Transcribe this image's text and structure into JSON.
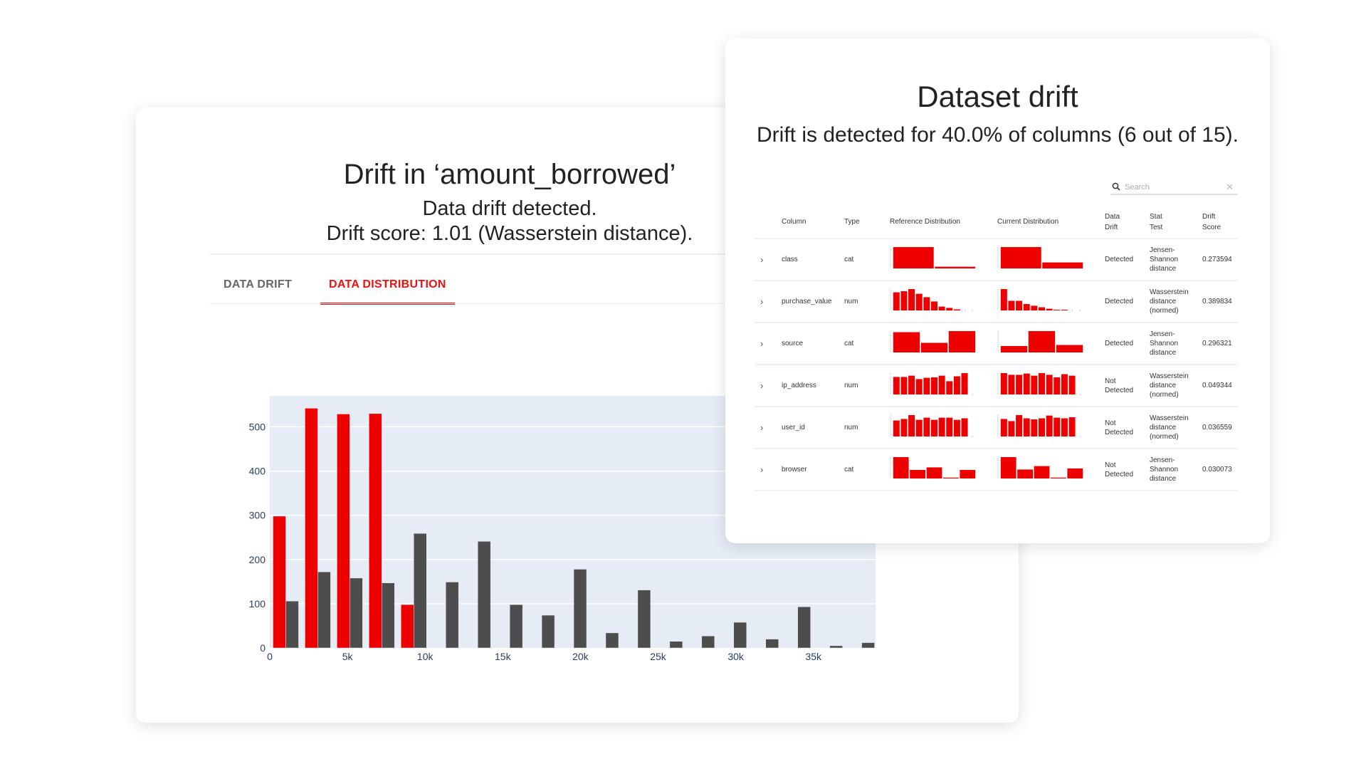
{
  "left_panel": {
    "title": "Drift in ‘amount_borrowed’",
    "subtitle": "Data drift detected.",
    "score_text": "Drift score: 1.01 (Wasserstein distance).",
    "tabs": [
      {
        "label": "DATA DRIFT",
        "active": false
      },
      {
        "label": "DATA DISTRIBUTION",
        "active": true
      }
    ]
  },
  "chart_data": {
    "type": "bar",
    "title": "",
    "xlabel": "",
    "ylabel": "",
    "x": [
      1030,
      3090,
      5150,
      7210,
      9270,
      11330,
      13390,
      15450,
      17510,
      19570,
      21630,
      23690,
      25750,
      27810,
      29870,
      31930,
      33990,
      36050,
      38110
    ],
    "series": [
      {
        "color": "#ee0000",
        "values": [
          298,
          542,
          529,
          530,
          98,
          0,
          0,
          0,
          0,
          0,
          0,
          0,
          0,
          0,
          0,
          0,
          0,
          0,
          0
        ]
      },
      {
        "color": "#4d4d4d",
        "values": [
          106,
          172,
          158,
          147,
          259,
          149,
          241,
          98,
          74,
          178,
          34,
          131,
          15,
          27,
          58,
          20,
          93,
          5,
          12
        ]
      }
    ],
    "xlim": [
      0,
      39000
    ],
    "ylim": [
      0,
      570
    ],
    "xticks": [
      {
        "v": 0,
        "label": "0"
      },
      {
        "v": 5000,
        "label": "5k"
      },
      {
        "v": 10000,
        "label": "10k"
      },
      {
        "v": 15000,
        "label": "15k"
      },
      {
        "v": 20000,
        "label": "20k"
      },
      {
        "v": 25000,
        "label": "25k"
      },
      {
        "v": 30000,
        "label": "30k"
      },
      {
        "v": 35000,
        "label": "35k"
      }
    ],
    "yticks": [
      {
        "v": 0,
        "label": "0"
      },
      {
        "v": 100,
        "label": "100"
      },
      {
        "v": 200,
        "label": "200"
      },
      {
        "v": 300,
        "label": "300"
      },
      {
        "v": 400,
        "label": "400"
      },
      {
        "v": 500,
        "label": "500"
      }
    ],
    "grid": true,
    "plot_bg": "#e5ecf6",
    "legend": "none"
  },
  "right_panel": {
    "title": "Dataset drift",
    "subtitle": "Drift is detected for 40.0% of columns (6 out of 15).",
    "search": {
      "placeholder": "Search",
      "value": ""
    },
    "headers": {
      "column": "Column",
      "type": "Type",
      "ref": "Reference Distribution",
      "cur": "Current Distribution",
      "drift_1": "Data",
      "drift_2": "Drift",
      "stat_1": "Stat",
      "stat_2": "Test",
      "score_1": "Drift",
      "score_2": "Score"
    },
    "rows": [
      {
        "column": "class",
        "type": "cat",
        "drift": [
          "Detected"
        ],
        "stat": [
          "Jensen-",
          "Shannon",
          "distance"
        ],
        "score": "0.273594",
        "ref": [
          1,
          0.08
        ],
        "cur": [
          1,
          0.28
        ]
      },
      {
        "column": "purchase_value",
        "type": "num",
        "drift": [
          "Detected"
        ],
        "stat": [
          "Wasserstein",
          "distance",
          "(normed)"
        ],
        "score": "0.389834",
        "ref": [
          0.85,
          0.9,
          1,
          0.78,
          0.62,
          0.42,
          0.18,
          0.12,
          0.05,
          0,
          0
        ],
        "cur": [
          1,
          0.45,
          0.45,
          0.3,
          0.22,
          0.15,
          0.08,
          0.03,
          0.03,
          0,
          0
        ]
      },
      {
        "column": "source",
        "type": "cat",
        "drift": [
          "Detected"
        ],
        "stat": [
          "Jensen-",
          "Shannon",
          "distance"
        ],
        "score": "0.296321",
        "ref": [
          0.95,
          0.45,
          1
        ],
        "cur": [
          0.3,
          1,
          0.35
        ]
      },
      {
        "column": "ip_address",
        "type": "num",
        "drift": [
          "Not",
          "Detected"
        ],
        "stat": [
          "Wasserstein",
          "distance",
          "(normed)"
        ],
        "score": "0.049344",
        "ref": [
          0.82,
          0.82,
          0.88,
          0.72,
          0.78,
          0.8,
          0.88,
          0.62,
          0.85,
          1,
          0
        ],
        "cur": [
          1,
          0.92,
          0.92,
          0.98,
          0.88,
          1,
          0.92,
          0.8,
          0.95,
          0.88,
          0
        ]
      },
      {
        "column": "user_id",
        "type": "num",
        "drift": [
          "Not",
          "Detected"
        ],
        "stat": [
          "Wasserstein",
          "distance",
          "(normed)"
        ],
        "score": "0.036559",
        "ref": [
          0.75,
          0.82,
          1,
          0.78,
          0.88,
          0.78,
          0.88,
          0.88,
          0.78,
          0.85,
          0
        ],
        "cur": [
          0.82,
          0.72,
          1,
          0.85,
          0.8,
          0.85,
          0.98,
          0.88,
          0.85,
          0.9,
          0
        ]
      },
      {
        "column": "browser",
        "type": "cat",
        "drift": [
          "Not",
          "Detected"
        ],
        "stat": [
          "Jensen-",
          "Shannon",
          "distance"
        ],
        "score": "0.030073",
        "ref": [
          1,
          0.4,
          0.52,
          0.04,
          0.4
        ],
        "cur": [
          1,
          0.42,
          0.58,
          0.04,
          0.47
        ]
      }
    ],
    "accent": "#ee0000"
  }
}
